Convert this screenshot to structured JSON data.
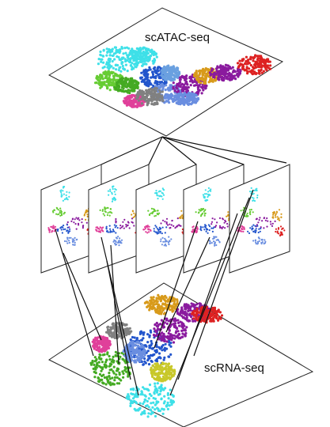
{
  "labels": {
    "top": "scATAC-seq",
    "bottom": "scRNA-seq"
  }
}
